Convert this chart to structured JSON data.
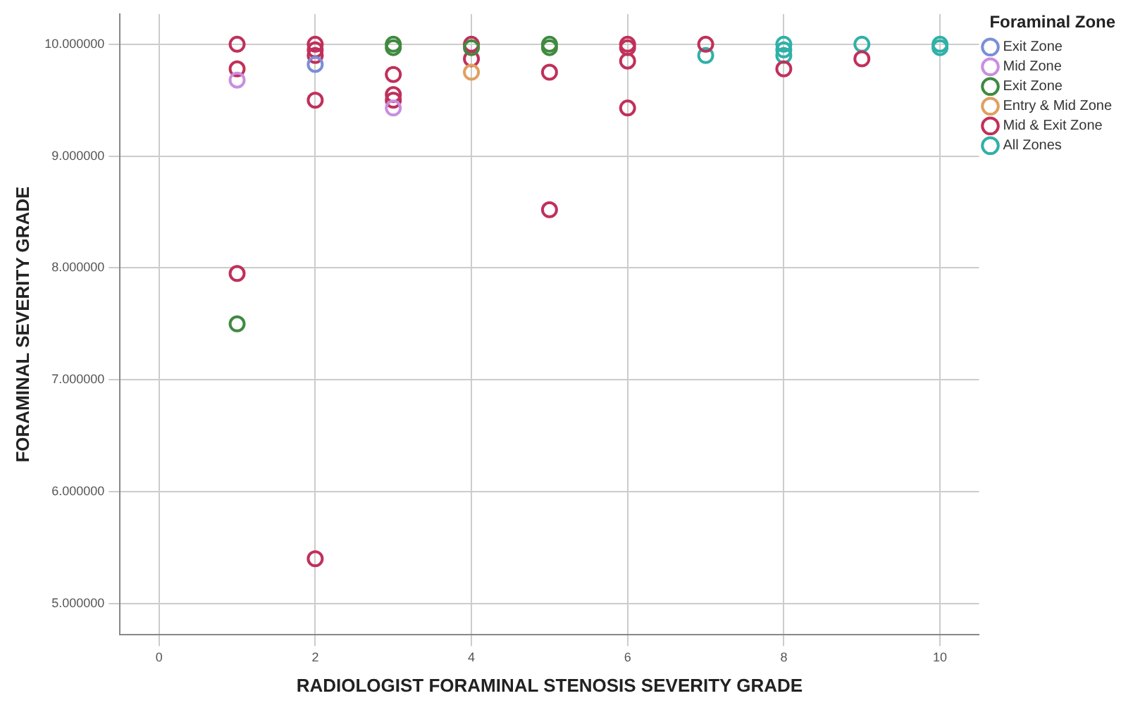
{
  "chart_data": {
    "type": "scatter",
    "xlabel": "RADIOLOGIST FORAMINAL STENOSIS SEVERITY GRADE",
    "ylabel": "FORAMINAL SEVERITY GRADE",
    "legend_title": "Foraminal Zone",
    "legend": "right",
    "grid": true,
    "marker": "circle",
    "xlim": [
      -0.5,
      10.5
    ],
    "xticks": [
      0,
      2,
      4,
      6,
      8,
      10
    ],
    "ylim": [
      4.72,
      10.27
    ],
    "yticks": [
      {
        "value": 5,
        "label": "5.000000"
      },
      {
        "value": 6,
        "label": "6.000000"
      },
      {
        "value": 7,
        "label": "7.000000"
      },
      {
        "value": 8,
        "label": "8.000000"
      },
      {
        "value": 9,
        "label": "9.000000"
      },
      {
        "value": 10,
        "label": "10.000000"
      }
    ],
    "series": [
      {
        "name": "Exit Zone",
        "color": "#7b8fd6",
        "x": [
          2
        ],
        "values": [
          9.82
        ]
      },
      {
        "name": "Mid Zone",
        "color": "#c98ee0",
        "x": [
          1,
          3
        ],
        "values": [
          9.68,
          9.43
        ]
      },
      {
        "name": "Exit Zone",
        "color": "#3f8a3f",
        "x": [
          1,
          3,
          3,
          4,
          5,
          5
        ],
        "values": [
          7.5,
          10.0,
          9.97,
          9.97,
          10.0,
          9.97
        ]
      },
      {
        "name": "Entry & Mid Zone",
        "color": "#e0a060",
        "x": [
          4
        ],
        "values": [
          9.75
        ]
      },
      {
        "name": "Mid & Exit Zone",
        "color": "#c0305a",
        "x": [
          1,
          1,
          1,
          2,
          2,
          2,
          2,
          2,
          3,
          3,
          3,
          4,
          4,
          5,
          5,
          6,
          6,
          6,
          6,
          7,
          8,
          9
        ],
        "values": [
          10.0,
          9.78,
          7.95,
          10.0,
          9.95,
          9.9,
          9.5,
          5.4,
          9.73,
          9.55,
          9.5,
          10.0,
          9.87,
          9.75,
          8.52,
          10.0,
          9.97,
          9.85,
          9.43,
          10.0,
          9.78,
          9.87
        ]
      },
      {
        "name": "All Zones",
        "color": "#30b0a8",
        "x": [
          7,
          8,
          8,
          8,
          9,
          10,
          10
        ],
        "values": [
          9.9,
          10.0,
          9.95,
          9.9,
          10.0,
          10.0,
          9.97
        ]
      }
    ]
  }
}
